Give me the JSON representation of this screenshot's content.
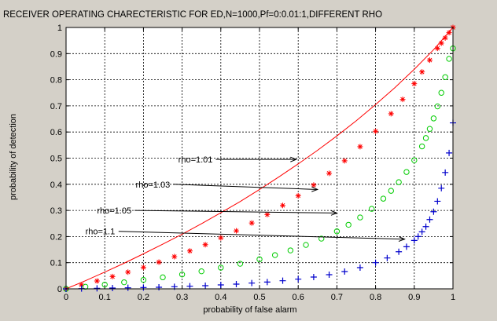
{
  "chart_data": {
    "type": "scatter",
    "title": "RECEIVER OPERATING CHARECTERISTIC FOR ED,N=1000,Pf=0:0.01:1,DIFFERENT  RHO",
    "xlabel": "probability of false alarm",
    "ylabel": "probability of detection",
    "xlim": [
      0,
      1
    ],
    "ylim": [
      0,
      1
    ],
    "xticks": [
      "0",
      "0.1",
      "0.2",
      "0.3",
      "0.4",
      "0.5",
      "0.6",
      "0.7",
      "0.8",
      "0.9",
      "1"
    ],
    "yticks": [
      "0",
      "0.1",
      "0.2",
      "0.3",
      "0.4",
      "0.5",
      "0.6",
      "0.7",
      "0.8",
      "0.9",
      "1"
    ],
    "grid": true,
    "background_color": "#d4d0c8",
    "plot_color": "#ffffff",
    "series": [
      {
        "color": "#ff0000",
        "marker": "line",
        "x": [
          0,
          0.05,
          0.1,
          0.15,
          0.2,
          0.25,
          0.3,
          0.35,
          0.4,
          0.45,
          0.5,
          0.55,
          0.6,
          0.65,
          0.7,
          0.75,
          0.8,
          0.85,
          0.9,
          0.95,
          1
        ],
        "y": [
          0,
          0.031,
          0.064,
          0.098,
          0.134,
          0.171,
          0.209,
          0.249,
          0.291,
          0.334,
          0.38,
          0.428,
          0.478,
          0.53,
          0.585,
          0.643,
          0.705,
          0.77,
          0.84,
          0.915,
          1
        ]
      },
      {
        "color": "#ff0000",
        "marker": "asterisk",
        "x": [
          0,
          0.04,
          0.08,
          0.12,
          0.16,
          0.2,
          0.24,
          0.28,
          0.32,
          0.36,
          0.4,
          0.44,
          0.48,
          0.52,
          0.56,
          0.6,
          0.64,
          0.68,
          0.72,
          0.76,
          0.8,
          0.84,
          0.87,
          0.9,
          0.92,
          0.94,
          0.96,
          0.97,
          0.98,
          0.99,
          1
        ],
        "y": [
          0,
          0.015,
          0.03,
          0.047,
          0.064,
          0.082,
          0.102,
          0.123,
          0.145,
          0.169,
          0.195,
          0.222,
          0.252,
          0.284,
          0.319,
          0.356,
          0.397,
          0.442,
          0.49,
          0.544,
          0.603,
          0.67,
          0.725,
          0.785,
          0.83,
          0.875,
          0.92,
          0.94,
          0.96,
          0.98,
          1
        ]
      },
      {
        "color": "#00cc00",
        "marker": "circle",
        "x": [
          0,
          0.05,
          0.1,
          0.15,
          0.2,
          0.25,
          0.3,
          0.35,
          0.4,
          0.45,
          0.5,
          0.54,
          0.58,
          0.62,
          0.66,
          0.7,
          0.73,
          0.76,
          0.79,
          0.82,
          0.84,
          0.86,
          0.88,
          0.9,
          0.92,
          0.93,
          0.94,
          0.95,
          0.96,
          0.97,
          0.98,
          0.99,
          1
        ],
        "y": [
          0,
          0.008,
          0.016,
          0.025,
          0.034,
          0.044,
          0.055,
          0.067,
          0.081,
          0.096,
          0.113,
          0.129,
          0.147,
          0.168,
          0.192,
          0.22,
          0.245,
          0.273,
          0.306,
          0.345,
          0.375,
          0.408,
          0.447,
          0.492,
          0.545,
          0.577,
          0.612,
          0.652,
          0.698,
          0.75,
          0.81,
          0.88,
          0.92
        ]
      },
      {
        "color": "#0000cc",
        "marker": "plus",
        "x": [
          0,
          0.04,
          0.08,
          0.12,
          0.16,
          0.2,
          0.24,
          0.28,
          0.32,
          0.36,
          0.4,
          0.44,
          0.48,
          0.52,
          0.56,
          0.6,
          0.64,
          0.68,
          0.72,
          0.76,
          0.8,
          0.83,
          0.86,
          0.88,
          0.9,
          0.91,
          0.92,
          0.93,
          0.94,
          0.95,
          0.96,
          0.97,
          0.98,
          0.99,
          1
        ],
        "y": [
          0,
          0.001,
          0.002,
          0.003,
          0.004,
          0.005,
          0.006,
          0.008,
          0.01,
          0.012,
          0.015,
          0.018,
          0.022,
          0.026,
          0.031,
          0.037,
          0.045,
          0.054,
          0.066,
          0.081,
          0.1,
          0.118,
          0.142,
          0.161,
          0.185,
          0.2,
          0.218,
          0.238,
          0.265,
          0.295,
          0.335,
          0.385,
          0.445,
          0.52,
          0.635
        ]
      }
    ],
    "annotations": [
      {
        "text": "rho=1.01",
        "label_x": 0.29,
        "label_y": 0.495,
        "arrow_x": 0.595,
        "arrow_y": 0.495
      },
      {
        "text": "rho=1.03",
        "label_x": 0.18,
        "label_y": 0.4,
        "arrow_x": 0.65,
        "arrow_y": 0.38
      },
      {
        "text": "rho=1.05",
        "label_x": 0.08,
        "label_y": 0.3,
        "arrow_x": 0.7,
        "arrow_y": 0.29
      },
      {
        "text": "rho=1.1",
        "label_x": 0.05,
        "label_y": 0.22,
        "arrow_x": 0.875,
        "arrow_y": 0.19
      }
    ]
  }
}
